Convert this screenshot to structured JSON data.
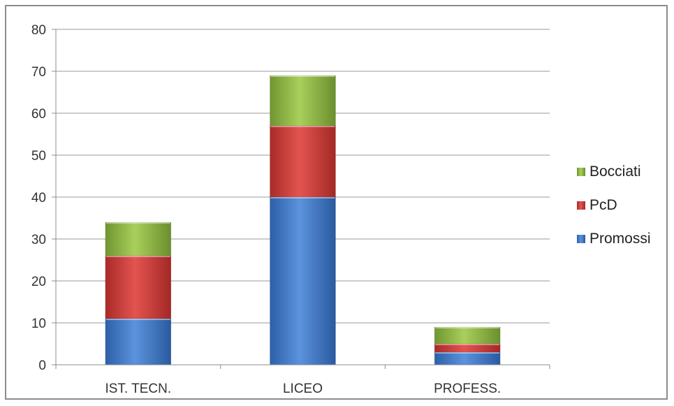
{
  "chart_data": {
    "type": "bar",
    "stacked": true,
    "categories": [
      "IST. TECN.",
      "LICEO",
      "PROFESS."
    ],
    "series": [
      {
        "name": "Promossi",
        "values": [
          11,
          40,
          3
        ],
        "color": "#3f79c8"
      },
      {
        "name": "PcD",
        "values": [
          15,
          17,
          2
        ],
        "color": "#cc3b36"
      },
      {
        "name": "Bocciati",
        "values": [
          8,
          12,
          4
        ],
        "color": "#8fb543"
      }
    ],
    "ylim": [
      0,
      80
    ],
    "yticks": [
      0,
      10,
      20,
      30,
      40,
      50,
      60,
      70,
      80
    ],
    "grid": true,
    "legend_position": "right",
    "legend_order": [
      "Bocciati",
      "PcD",
      "Promossi"
    ]
  }
}
